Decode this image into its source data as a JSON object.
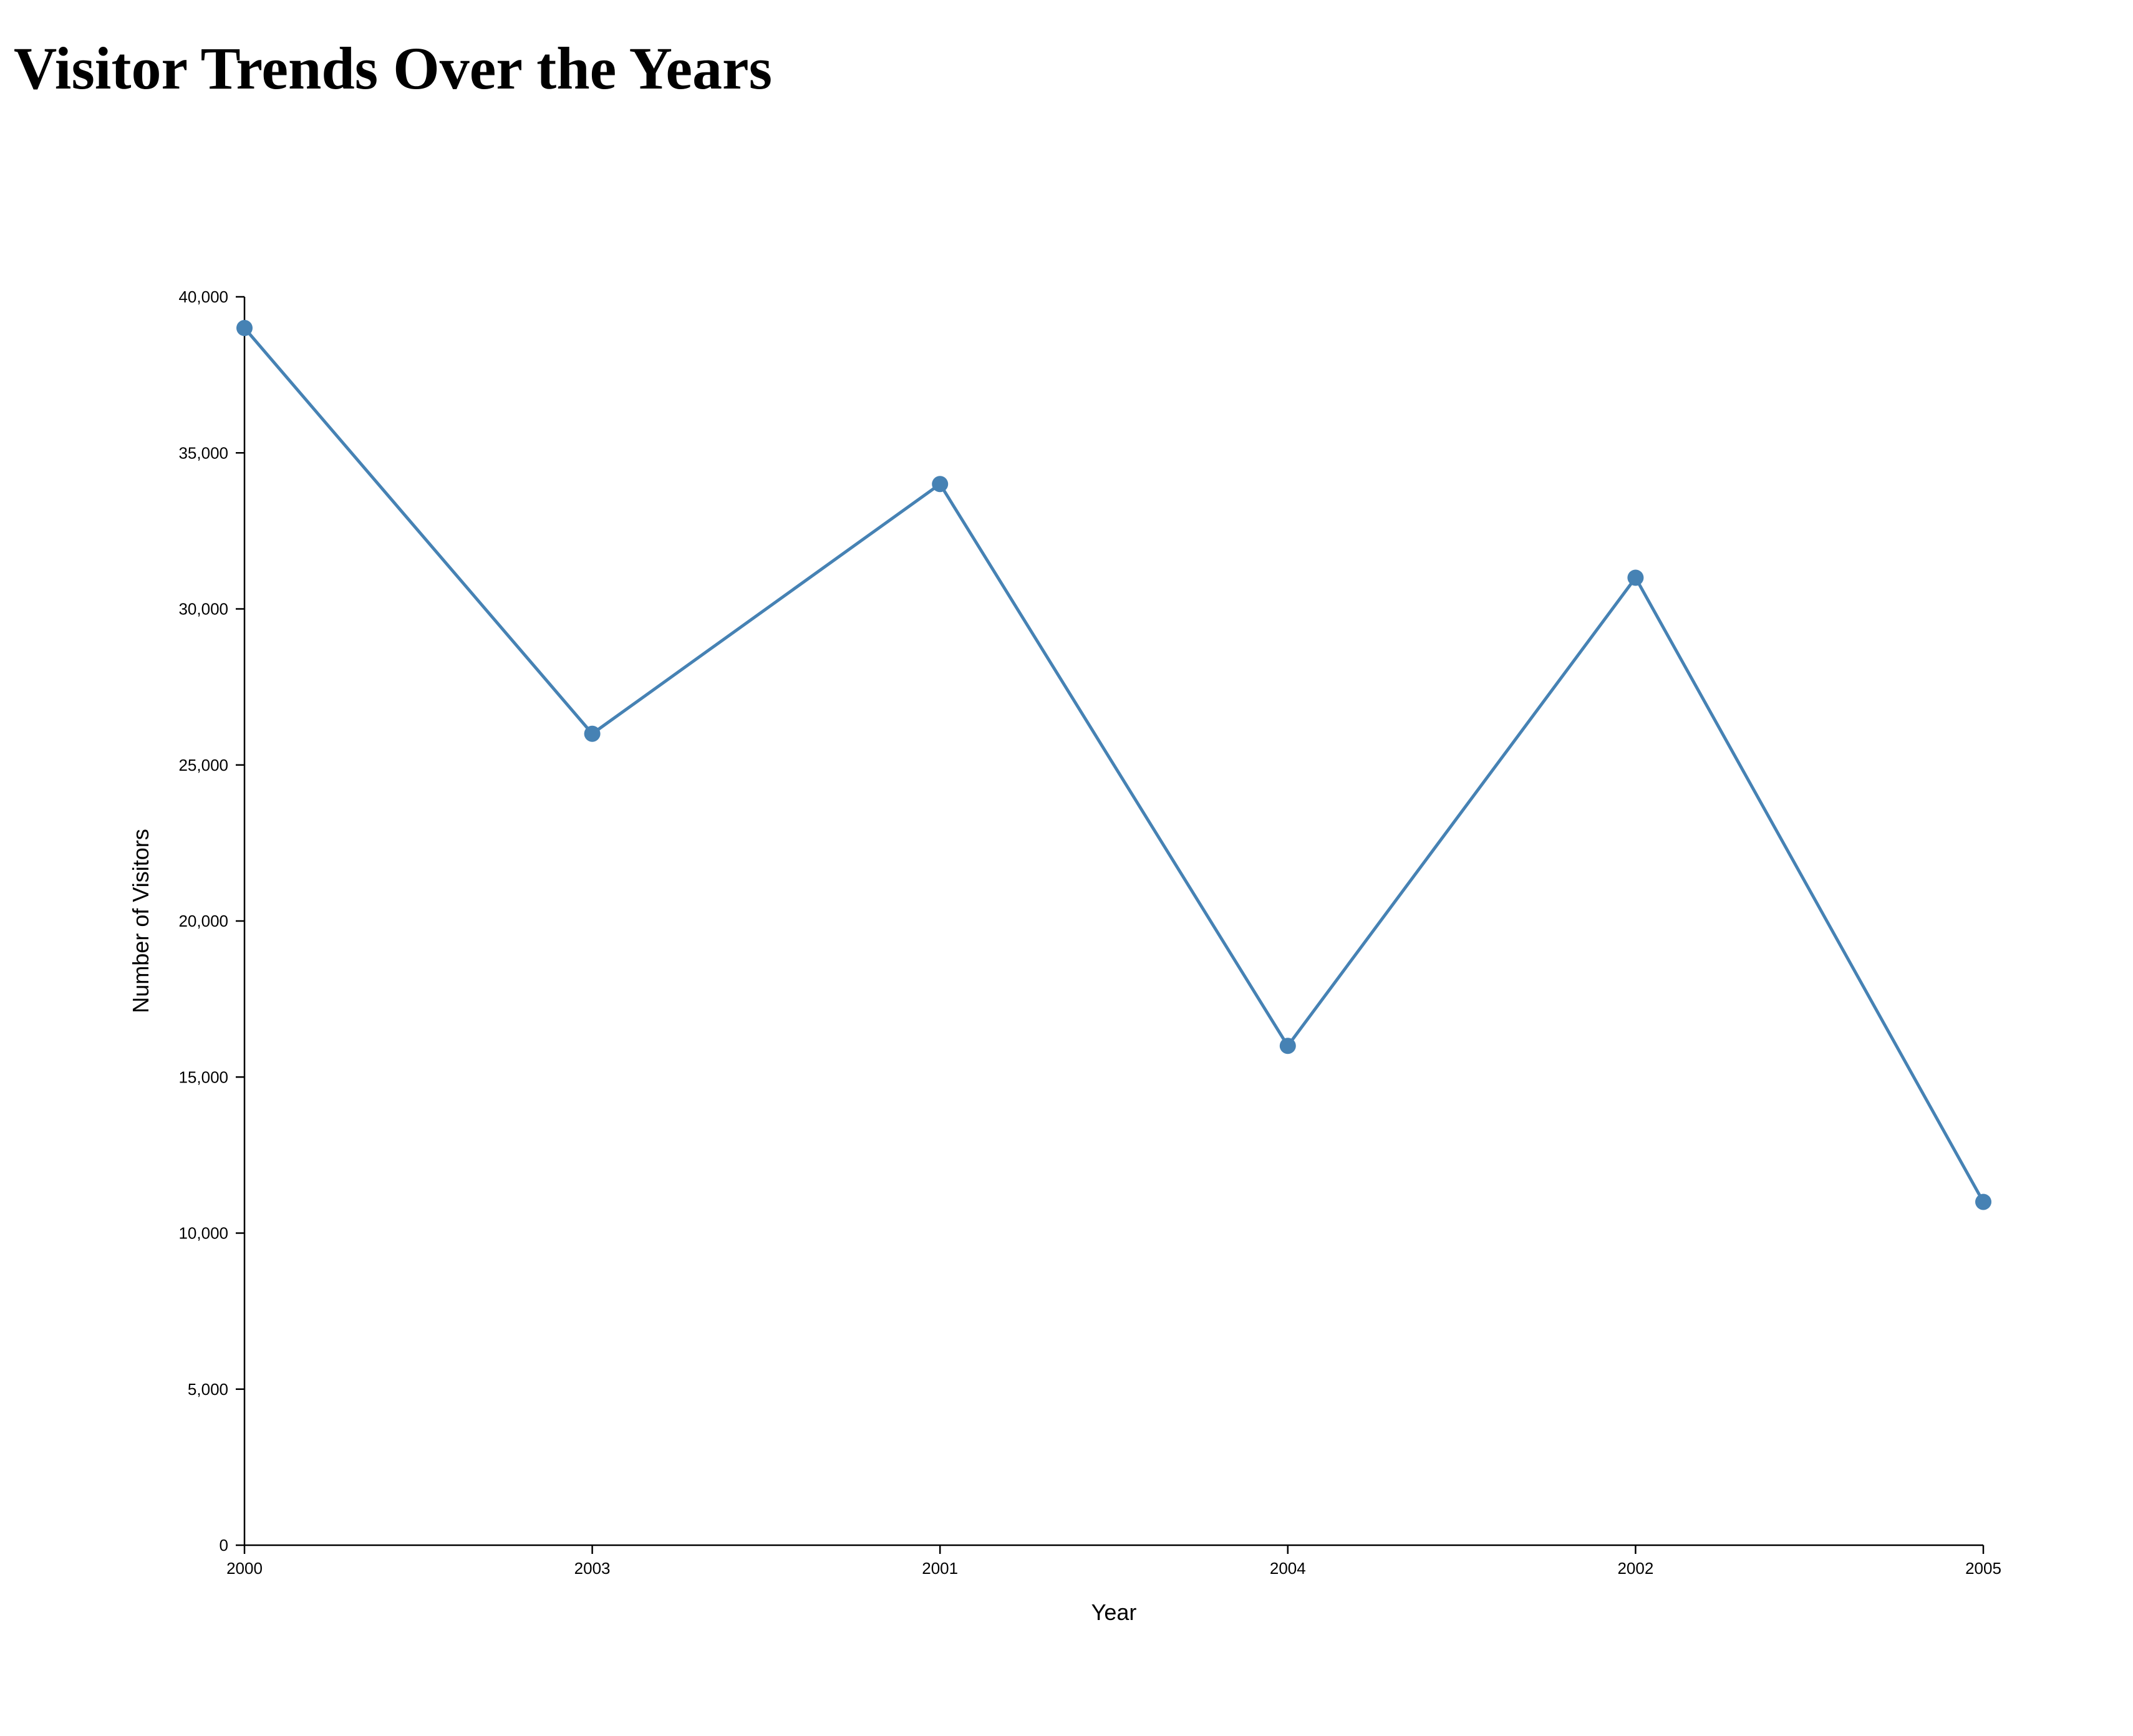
{
  "title": "Visitor Trends Over the Years",
  "colors": {
    "series": "#4682b4",
    "axis": "#000000",
    "background": "#ffffff"
  },
  "chart_data": {
    "type": "line",
    "title": "Visitor Trends Over the Years",
    "xlabel": "Year",
    "ylabel": "Number of Visitors",
    "x": [
      "2000",
      "2003",
      "2001",
      "2004",
      "2002",
      "2005"
    ],
    "series": [
      {
        "values": [
          39000,
          26000,
          34000,
          16000,
          31000,
          11000
        ]
      }
    ],
    "ylim": [
      0,
      40000
    ],
    "yticks": [
      0,
      5000,
      10000,
      15000,
      20000,
      25000,
      30000,
      35000,
      40000
    ],
    "ytick_labels": [
      "0",
      "5,000",
      "10,000",
      "15,000",
      "20,000",
      "25,000",
      "30,000",
      "35,000",
      "40,000"
    ],
    "markers": true,
    "grid": false,
    "legend": false
  }
}
